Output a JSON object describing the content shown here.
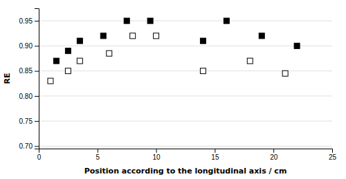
{
  "chart_data": {
    "type": "scatter",
    "xlabel": "Position according to the longitudinal axis / cm",
    "ylabel": "RE",
    "xlim": [
      0,
      25
    ],
    "ylim": [
      0.695,
      0.975
    ],
    "xticks": [
      0,
      5,
      10,
      15,
      20,
      25
    ],
    "yticks": [
      {
        "value": 0.7,
        "label": "0.70"
      },
      0.75,
      {
        "value": 0.8,
        "label": "0.80"
      },
      0.85,
      {
        "value": 0.9,
        "label": "0.90"
      },
      0.95
    ],
    "grid": true,
    "series": [
      {
        "x": [
          1.5,
          2.5,
          3.5,
          5.5,
          7.5,
          9.5,
          14,
          16,
          19,
          22
        ],
        "values": [
          0.87,
          0.89,
          0.91,
          0.92,
          0.95,
          0.95,
          0.91,
          0.95,
          0.92,
          0.9
        ],
        "color": "#000000",
        "marker": "square"
      },
      {
        "x": [
          1,
          2.5,
          3.5,
          6,
          8,
          10,
          14,
          18,
          21
        ],
        "values": [
          0.83,
          0.85,
          0.87,
          0.885,
          0.92,
          0.92,
          0.85,
          0.87,
          0.845
        ],
        "color": "#000000",
        "marker": "square-open"
      }
    ]
  }
}
